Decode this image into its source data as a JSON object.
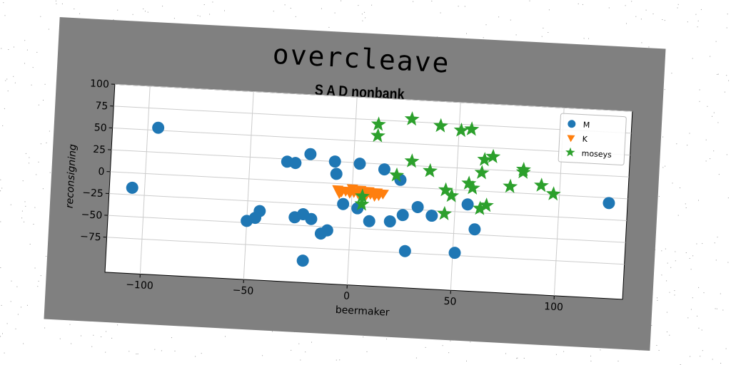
{
  "figure": {
    "suptitle": "overcleave",
    "title": "S A D nonbank"
  },
  "chart_data": {
    "type": "scatter",
    "title": "S A D nonbank",
    "xlabel": "beermaker",
    "ylabel": "reconsigning",
    "xlim": [
      -117,
      133
    ],
    "ylim": [
      -115,
      100
    ],
    "xticks": [
      -100,
      -50,
      0,
      50,
      100
    ],
    "yticks": [
      -75,
      -50,
      -25,
      0,
      25,
      50,
      75,
      100
    ],
    "xtick_labels": [
      "−100",
      "−50",
      "0",
      "50",
      "100"
    ],
    "ytick_labels": [
      "−75",
      "−50",
      "−25",
      "0",
      "25",
      "50",
      "75",
      "100"
    ],
    "grid": true,
    "legend_position": "upper right",
    "series": [
      {
        "name": "M",
        "marker": "circle",
        "color": "#1f77b4",
        "points": [
          [
            -106,
            -17
          ],
          [
            -95,
            53
          ],
          [
            -32,
            22
          ],
          [
            -28,
            21
          ],
          [
            -21,
            32
          ],
          [
            -9,
            25
          ],
          [
            -8,
            11
          ],
          [
            3,
            24
          ],
          [
            15,
            19
          ],
          [
            23,
            8
          ],
          [
            -44,
            -36
          ],
          [
            -46,
            -44
          ],
          [
            -50,
            -48
          ],
          [
            -27,
            -41
          ],
          [
            -23,
            -37
          ],
          [
            -19,
            -42
          ],
          [
            -4,
            -23
          ],
          [
            3,
            -27
          ],
          [
            -14,
            -58
          ],
          [
            -11,
            -54
          ],
          [
            9,
            -41
          ],
          [
            19,
            -40
          ],
          [
            25,
            -32
          ],
          [
            32,
            -22
          ],
          [
            39,
            -31
          ],
          [
            56,
            -16
          ],
          [
            60,
            -44
          ],
          [
            51,
            -72
          ],
          [
            27,
            -73
          ],
          [
            -22,
            -90
          ],
          [
            124,
            -6
          ]
        ]
      },
      {
        "name": "K",
        "marker": "triangle_down",
        "color": "#ff7f0e",
        "points": [
          [
            -7,
            -7
          ],
          [
            -5,
            -9
          ],
          [
            -3,
            -8
          ],
          [
            -1,
            -10
          ],
          [
            1,
            -9
          ],
          [
            3,
            -10
          ],
          [
            5,
            -9
          ],
          [
            7,
            -11
          ],
          [
            9,
            -10
          ],
          [
            11,
            -12
          ],
          [
            13,
            -11
          ],
          [
            15,
            -9
          ],
          [
            -6,
            -11
          ],
          [
            0,
            -5
          ],
          [
            4,
            -6
          ],
          [
            8,
            -7
          ],
          [
            12,
            -8
          ]
        ]
      },
      {
        "name": "moseys",
        "marker": "star",
        "color": "#2ca02c",
        "points": [
          [
            11,
            70
          ],
          [
            11,
            57
          ],
          [
            27,
            78
          ],
          [
            41,
            72
          ],
          [
            51,
            68
          ],
          [
            56,
            70
          ],
          [
            28,
            30
          ],
          [
            37,
            20
          ],
          [
            21,
            13
          ],
          [
            5,
            -13
          ],
          [
            5,
            -22
          ],
          [
            45,
            -28
          ],
          [
            48,
            -7
          ],
          [
            56,
            8
          ],
          [
            58,
            3
          ],
          [
            62,
            21
          ],
          [
            63,
            36
          ],
          [
            67,
            40
          ],
          [
            62,
            -20
          ],
          [
            65,
            -16
          ],
          [
            76,
            7
          ],
          [
            82,
            27
          ],
          [
            82,
            24
          ],
          [
            91,
            10
          ],
          [
            97,
            1
          ],
          [
            45,
            -1
          ]
        ]
      }
    ]
  }
}
